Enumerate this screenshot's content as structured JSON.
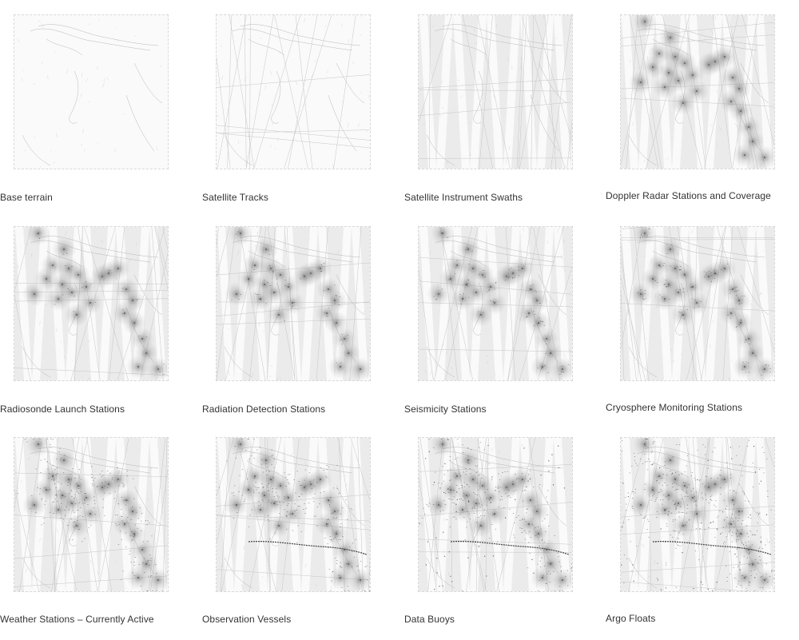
{
  "panels": [
    {
      "label": "Base terrain",
      "layers": {
        "terrain": true,
        "tracks": false,
        "swaths": false,
        "doppler": false,
        "stations": 0,
        "vessels": false,
        "buoys": false,
        "argo": false
      }
    },
    {
      "label": "Satellite Tracks",
      "layers": {
        "terrain": true,
        "tracks": true,
        "swaths": false,
        "doppler": false,
        "stations": 0,
        "vessels": false,
        "buoys": false,
        "argo": false
      }
    },
    {
      "label": "Satellite Instrument Swaths",
      "layers": {
        "terrain": true,
        "tracks": true,
        "swaths": true,
        "doppler": false,
        "stations": 0,
        "vessels": false,
        "buoys": false,
        "argo": false
      }
    },
    {
      "label": "Doppler Radar Stations and Coverage",
      "layers": {
        "terrain": true,
        "tracks": true,
        "swaths": true,
        "doppler": true,
        "stations": 0,
        "vessels": false,
        "buoys": false,
        "argo": false
      }
    },
    {
      "label": "Radiosonde Launch Stations",
      "layers": {
        "terrain": true,
        "tracks": true,
        "swaths": true,
        "doppler": true,
        "stations": 1,
        "vessels": false,
        "buoys": false,
        "argo": false
      }
    },
    {
      "label": "Radiation Detection Stations",
      "layers": {
        "terrain": true,
        "tracks": true,
        "swaths": true,
        "doppler": true,
        "stations": 2,
        "vessels": false,
        "buoys": false,
        "argo": false
      }
    },
    {
      "label": "Seismicity Stations",
      "layers": {
        "terrain": true,
        "tracks": true,
        "swaths": true,
        "doppler": true,
        "stations": 3,
        "vessels": false,
        "buoys": false,
        "argo": false
      }
    },
    {
      "label": "Cryosphere Monitoring Stations",
      "layers": {
        "terrain": true,
        "tracks": true,
        "swaths": true,
        "doppler": true,
        "stations": 4,
        "vessels": false,
        "buoys": false,
        "argo": false
      }
    },
    {
      "label": "Weather Stations – Currently Active",
      "layers": {
        "terrain": true,
        "tracks": true,
        "swaths": true,
        "doppler": true,
        "stations": 9,
        "vessels": false,
        "buoys": false,
        "argo": false
      }
    },
    {
      "label": "Observation Vessels",
      "layers": {
        "terrain": true,
        "tracks": true,
        "swaths": true,
        "doppler": true,
        "stations": 9,
        "vessels": true,
        "buoys": false,
        "argo": false
      }
    },
    {
      "label": "Data Buoys",
      "layers": {
        "terrain": true,
        "tracks": true,
        "swaths": true,
        "doppler": true,
        "stations": 9,
        "vessels": true,
        "buoys": true,
        "argo": false
      }
    },
    {
      "label": "Argo Floats",
      "layers": {
        "terrain": true,
        "tracks": true,
        "swaths": true,
        "doppler": true,
        "stations": 9,
        "vessels": true,
        "buoys": true,
        "argo": true
      }
    }
  ]
}
